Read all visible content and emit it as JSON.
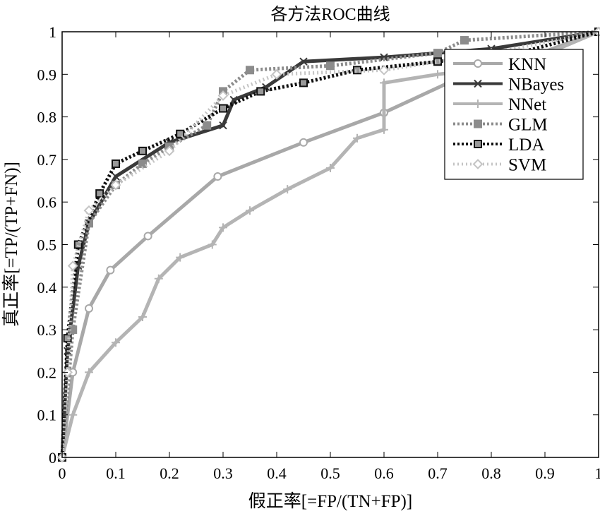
{
  "chart_data": {
    "type": "line",
    "title": "各方法ROC曲线",
    "xlabel": "假正率[=FP/(TN+FP)]",
    "ylabel": "真正率[=TP/(TP+FN)]",
    "xlim": [
      0,
      1
    ],
    "ylim": [
      0,
      1
    ],
    "xticks": [
      "0",
      "0.1",
      "0.2",
      "0.3",
      "0.4",
      "0.5",
      "0.6",
      "0.7",
      "0.8",
      "0.9",
      "1"
    ],
    "yticks": [
      "0",
      "0.1",
      "0.2",
      "0.3",
      "0.4",
      "0.5",
      "0.6",
      "0.7",
      "0.8",
      "0.9",
      "1"
    ],
    "grid": false,
    "legend_position": "top-right",
    "series": [
      {
        "name": "KNN",
        "color": "#a8a8a8",
        "marker": "circle",
        "dash": "",
        "points": [
          [
            0,
            0
          ],
          [
            0.02,
            0.2
          ],
          [
            0.05,
            0.35
          ],
          [
            0.09,
            0.44
          ],
          [
            0.16,
            0.52
          ],
          [
            0.29,
            0.66
          ],
          [
            0.45,
            0.74
          ],
          [
            0.6,
            0.81
          ],
          [
            0.72,
            0.88
          ],
          [
            0.85,
            0.93
          ],
          [
            1,
            1
          ]
        ]
      },
      {
        "name": "NBayes",
        "color": "#3a3a3a",
        "marker": "x",
        "dash": "",
        "points": [
          [
            0,
            0
          ],
          [
            0.01,
            0.25
          ],
          [
            0.03,
            0.45
          ],
          [
            0.05,
            0.55
          ],
          [
            0.1,
            0.66
          ],
          [
            0.2,
            0.74
          ],
          [
            0.3,
            0.78
          ],
          [
            0.32,
            0.84
          ],
          [
            0.38,
            0.87
          ],
          [
            0.45,
            0.93
          ],
          [
            0.6,
            0.94
          ],
          [
            0.8,
            0.96
          ],
          [
            1,
            1
          ]
        ]
      },
      {
        "name": "NNet",
        "color": "#b4b4b4",
        "marker": "plus",
        "dash": "",
        "points": [
          [
            0,
            0
          ],
          [
            0.02,
            0.1
          ],
          [
            0.05,
            0.2
          ],
          [
            0.1,
            0.27
          ],
          [
            0.15,
            0.33
          ],
          [
            0.18,
            0.42
          ],
          [
            0.22,
            0.47
          ],
          [
            0.28,
            0.5
          ],
          [
            0.3,
            0.54
          ],
          [
            0.35,
            0.58
          ],
          [
            0.42,
            0.63
          ],
          [
            0.5,
            0.68
          ],
          [
            0.55,
            0.75
          ],
          [
            0.6,
            0.77
          ],
          [
            0.6,
            0.88
          ],
          [
            0.7,
            0.9
          ],
          [
            0.85,
            0.92
          ],
          [
            1,
            1
          ]
        ]
      },
      {
        "name": "GLM",
        "color": "#8c8c8c",
        "marker": "square",
        "dash": "3,3",
        "points": [
          [
            0,
            0
          ],
          [
            0.02,
            0.3
          ],
          [
            0.05,
            0.55
          ],
          [
            0.1,
            0.64
          ],
          [
            0.15,
            0.69
          ],
          [
            0.2,
            0.73
          ],
          [
            0.27,
            0.78
          ],
          [
            0.3,
            0.86
          ],
          [
            0.35,
            0.91
          ],
          [
            0.5,
            0.92
          ],
          [
            0.7,
            0.95
          ],
          [
            0.75,
            0.98
          ],
          [
            1,
            1
          ]
        ]
      },
      {
        "name": "LDA",
        "color": "#111111",
        "marker": "square-open",
        "dash": "3,3",
        "points": [
          [
            0,
            0
          ],
          [
            0.01,
            0.28
          ],
          [
            0.03,
            0.5
          ],
          [
            0.07,
            0.62
          ],
          [
            0.1,
            0.69
          ],
          [
            0.15,
            0.72
          ],
          [
            0.22,
            0.76
          ],
          [
            0.3,
            0.82
          ],
          [
            0.37,
            0.86
          ],
          [
            0.45,
            0.88
          ],
          [
            0.55,
            0.91
          ],
          [
            0.7,
            0.93
          ],
          [
            0.85,
            0.95
          ],
          [
            1,
            1
          ]
        ]
      },
      {
        "name": "SVM",
        "color": "#c4c4c4",
        "marker": "diamond",
        "dash": "2,4",
        "points": [
          [
            0,
            0
          ],
          [
            0.01,
            0.2
          ],
          [
            0.02,
            0.45
          ],
          [
            0.05,
            0.58
          ],
          [
            0.1,
            0.64
          ],
          [
            0.2,
            0.72
          ],
          [
            0.3,
            0.85
          ],
          [
            0.4,
            0.9
          ],
          [
            0.6,
            0.91
          ],
          [
            0.8,
            0.95
          ],
          [
            1,
            1
          ]
        ]
      }
    ]
  }
}
